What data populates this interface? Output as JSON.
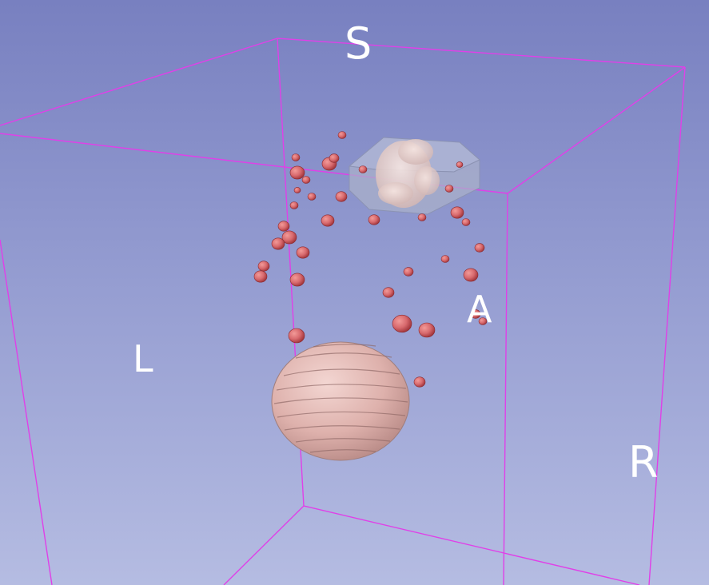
{
  "view": {
    "background_top": "#7880c0",
    "background_bottom": "#b5bce2",
    "bbox_color": "#e040e8"
  },
  "orientation": {
    "superior": "S",
    "anterior": "A",
    "left": "L",
    "right": "R"
  },
  "models": {
    "nodule_color": "#d86a6e",
    "large_mass_color": "#e5b8b4",
    "box_color": "#a9b0c9"
  }
}
